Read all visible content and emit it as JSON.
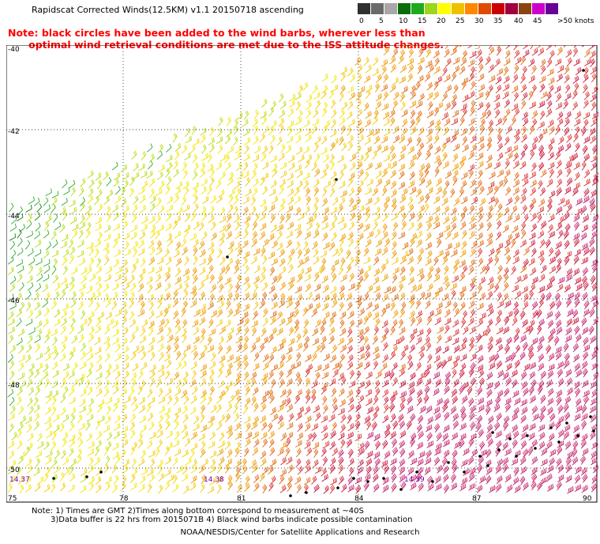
{
  "title": "Rapidscat Corrected Winds(12.5KM) v1.1 20150718 ascending",
  "note_line1": "Note: black circles have been added to the wind barbs, wherever less than",
  "note_line2": "      optimal wind retrieval conditions are met due to the ISS attitude changes.",
  "legend": {
    "labels": [
      "0",
      "5",
      "10",
      "15",
      "20",
      "25",
      "30",
      "35",
      "40",
      "45",
      ">50 knots"
    ],
    "colors": [
      "#303030",
      "#6a6a6a",
      "#a8a8a8",
      "#0a6e0a",
      "#1eaa1e",
      "#9bd61a",
      "#ffff00",
      "#f0c000",
      "#ff8800",
      "#e04a00",
      "#cc0000",
      "#a00040",
      "#8b4513",
      "#cc00cc",
      "#660099"
    ]
  },
  "axes": {
    "lat_labels": [
      "-40",
      "-42",
      "-44",
      "-46",
      "-48",
      "-50"
    ],
    "lon_labels": [
      "75",
      "78",
      "81",
      "84",
      "87",
      "90"
    ]
  },
  "time_labels": [
    {
      "text": "14.37",
      "color": "#7a00aa"
    },
    {
      "text": "14.38",
      "color": "#7a00aa"
    },
    {
      "text": "14.39",
      "color": "#7a00aa"
    }
  ],
  "footer": {
    "line1": "Note: 1) Times are GMT 2)Times along bottom correspond to measurement at ~40S",
    "line2": "3)Data buffer is 22 hrs from 2015071B 4) Black wind barbs indicate possible contamination",
    "credit": "NOAA/NESDIS/Center for Satellite Applications and Research"
  }
}
